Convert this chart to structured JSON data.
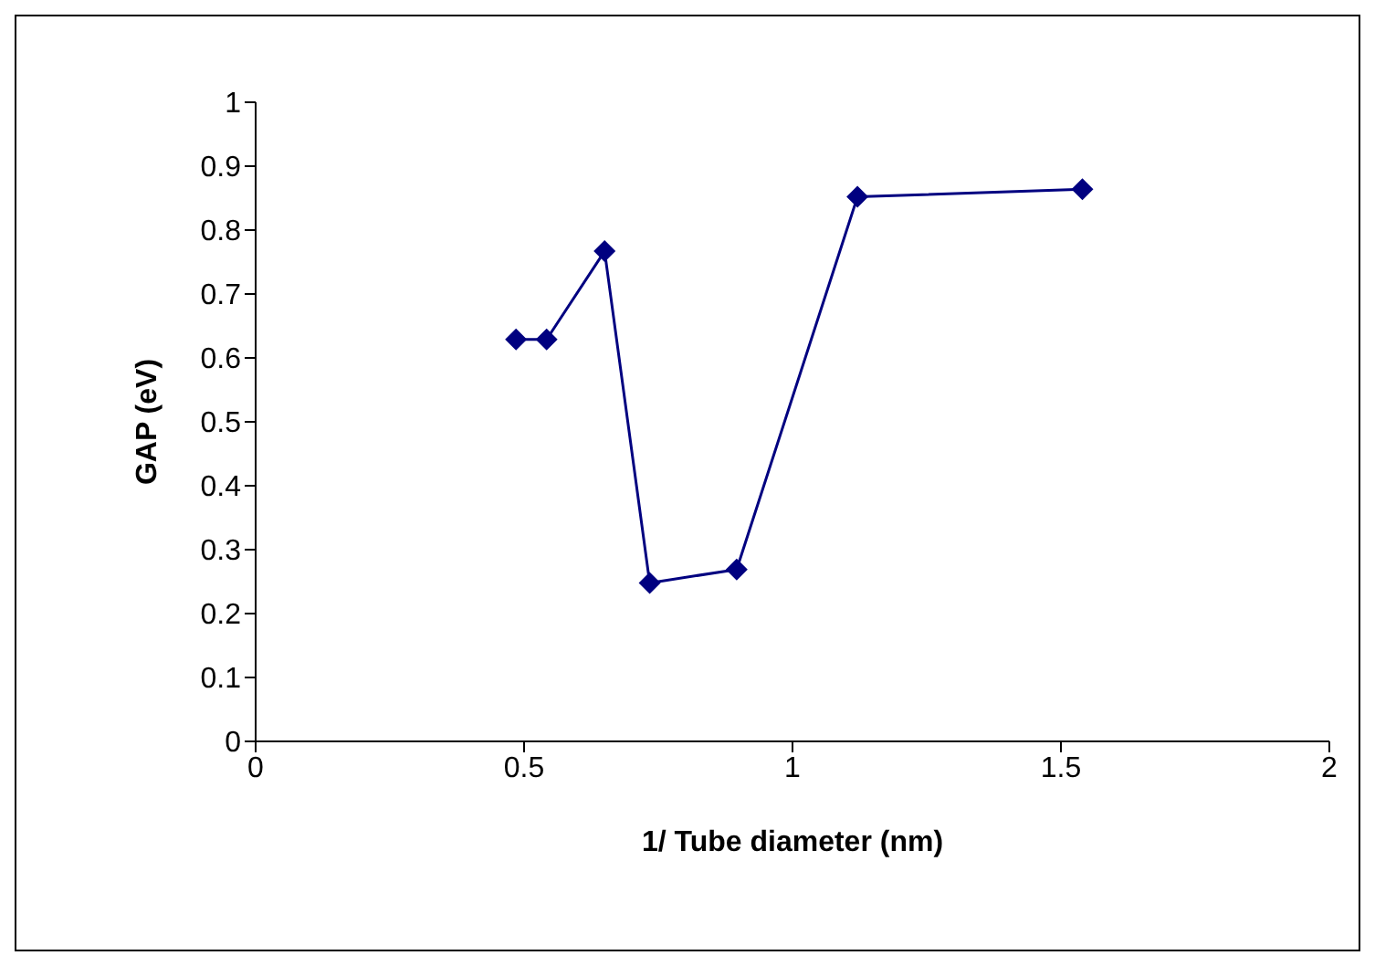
{
  "chart_data": {
    "type": "line",
    "xlabel": "1/ Tube diameter (nm)",
    "ylabel": "GAP (eV)",
    "x": [
      0.485,
      0.542,
      0.65,
      0.734,
      0.896,
      1.121,
      1.54
    ],
    "series": [
      {
        "color": "#000080",
        "values": [
          0.629,
          0.629,
          0.767,
          0.248,
          0.269,
          0.852,
          0.864
        ]
      }
    ],
    "xlim": [
      0,
      2
    ],
    "xticks": [
      0,
      0.5,
      1,
      1.5,
      2
    ],
    "ylim": [
      0,
      1
    ],
    "yticks": [
      0,
      0.1,
      0.2,
      0.3,
      0.4,
      0.5,
      0.6,
      0.7,
      0.8,
      0.9,
      1
    ],
    "marker": "diamond",
    "line_style": "solid",
    "grid": false,
    "legend": false
  }
}
